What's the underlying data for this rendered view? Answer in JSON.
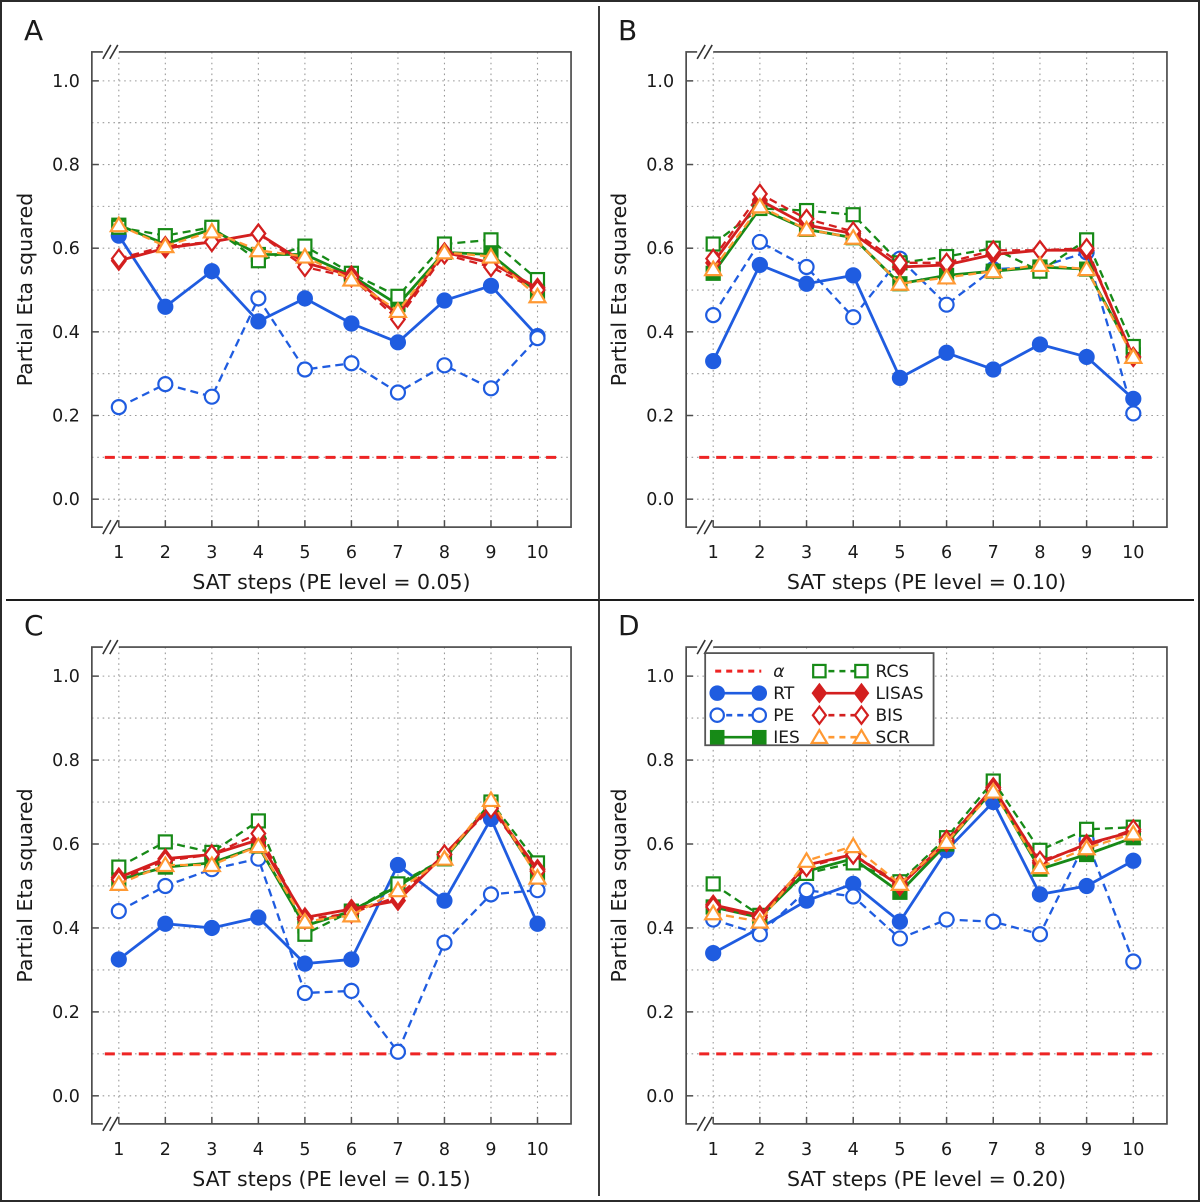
{
  "figure": {
    "background": "#ffffff",
    "outer_border_color": "#2b2b2b",
    "divider_color": "#3c3c3c",
    "axis_color": "#4d4d4d",
    "grid_color": "#9a9a9a",
    "text_color": "#1a1a1a",
    "axis_breaks": true
  },
  "series_defs": [
    {
      "key": "alpha",
      "label": "α",
      "type": "hline",
      "color": "#ee2424",
      "dash": "10 7",
      "width": 3,
      "marker": "none",
      "filled": false
    },
    {
      "key": "RT",
      "label": "RT",
      "type": "line",
      "color": "#1f5ce0",
      "dash": null,
      "width": 2.8,
      "marker": "circle",
      "filled": true
    },
    {
      "key": "PE",
      "label": "PE",
      "type": "line",
      "color": "#1f5ce0",
      "dash": "8 5",
      "width": 2.3,
      "marker": "circle",
      "filled": false
    },
    {
      "key": "IES",
      "label": "IES",
      "type": "line",
      "color": "#178a17",
      "dash": null,
      "width": 2.8,
      "marker": "square",
      "filled": true
    },
    {
      "key": "RCS",
      "label": "RCS",
      "type": "line",
      "color": "#178a17",
      "dash": "8 5",
      "width": 2.3,
      "marker": "square",
      "filled": false
    },
    {
      "key": "LISAS",
      "label": "LISAS",
      "type": "line",
      "color": "#d31f1f",
      "dash": null,
      "width": 2.8,
      "marker": "diamond",
      "filled": true
    },
    {
      "key": "BIS",
      "label": "BIS",
      "type": "line",
      "color": "#d31f1f",
      "dash": "8 5",
      "width": 2.3,
      "marker": "diamond",
      "filled": false
    },
    {
      "key": "SCR",
      "label": "SCR",
      "type": "line",
      "color": "#ff9933",
      "dash": "8 5",
      "width": 2.3,
      "marker": "triangle",
      "filled": false
    }
  ],
  "legend": {
    "col1": [
      "alpha",
      "RT",
      "PE",
      "IES"
    ],
    "col2": [
      "RCS",
      "LISAS",
      "BIS",
      "SCR"
    ],
    "border_color": "#555555",
    "background": "#ffffff"
  },
  "chart_data": [
    {
      "type": "line",
      "panel_label": "A",
      "xlabel": "SAT steps (PE level = 0.05)",
      "ylabel": "Partial Eta squared",
      "x": [
        1,
        2,
        3,
        4,
        5,
        6,
        7,
        8,
        9,
        10
      ],
      "yticks": [
        0.0,
        0.2,
        0.4,
        0.6,
        0.8,
        1.0
      ],
      "ytick_labels": [
        "0.0",
        "0.2",
        "0.4",
        "0.6",
        "0.8",
        "1.0"
      ],
      "ylim": [
        -0.07,
        1.07
      ],
      "grid": "dotted",
      "alpha": 0.1,
      "show_legend": false,
      "series": {
        "RT": [
          0.63,
          0.46,
          0.545,
          0.425,
          0.48,
          0.42,
          0.375,
          0.475,
          0.51,
          0.39
        ],
        "PE": [
          0.22,
          0.275,
          0.245,
          0.48,
          0.31,
          0.325,
          0.255,
          0.32,
          0.265,
          0.385
        ],
        "IES": [
          0.655,
          0.61,
          0.645,
          0.585,
          0.585,
          0.535,
          0.465,
          0.59,
          0.585,
          0.495
        ],
        "RCS": [
          0.65,
          0.63,
          0.65,
          0.57,
          0.605,
          0.54,
          0.485,
          0.61,
          0.62,
          0.525
        ],
        "LISAS": [
          0.57,
          0.6,
          0.615,
          0.635,
          0.565,
          0.535,
          0.44,
          0.59,
          0.565,
          0.505
        ],
        "BIS": [
          0.575,
          0.605,
          0.615,
          0.635,
          0.555,
          0.53,
          0.43,
          0.585,
          0.555,
          0.5
        ],
        "SCR": [
          0.655,
          0.605,
          0.64,
          0.595,
          0.58,
          0.525,
          0.45,
          0.59,
          0.58,
          0.485
        ]
      }
    },
    {
      "type": "line",
      "panel_label": "B",
      "xlabel": "SAT steps (PE level = 0.10)",
      "ylabel": "Partial Eta squared",
      "x": [
        1,
        2,
        3,
        4,
        5,
        6,
        7,
        8,
        9,
        10
      ],
      "yticks": [
        0.0,
        0.2,
        0.4,
        0.6,
        0.8,
        1.0
      ],
      "ytick_labels": [
        "0.0",
        "0.2",
        "0.4",
        "0.6",
        "0.8",
        "1.0"
      ],
      "ylim": [
        -0.07,
        1.07
      ],
      "grid": "dotted",
      "alpha": 0.1,
      "show_legend": false,
      "series": {
        "RT": [
          0.33,
          0.56,
          0.515,
          0.535,
          0.29,
          0.35,
          0.31,
          0.37,
          0.34,
          0.24
        ],
        "PE": [
          0.44,
          0.615,
          0.555,
          0.435,
          0.575,
          0.465,
          0.55,
          0.555,
          0.59,
          0.205
        ],
        "IES": [
          0.54,
          0.695,
          0.645,
          0.625,
          0.515,
          0.535,
          0.545,
          0.555,
          0.55,
          0.345
        ],
        "RCS": [
          0.61,
          0.695,
          0.69,
          0.68,
          0.565,
          0.58,
          0.6,
          0.545,
          0.62,
          0.365
        ],
        "LISAS": [
          0.565,
          0.715,
          0.655,
          0.635,
          0.555,
          0.56,
          0.585,
          0.595,
          0.595,
          0.34
        ],
        "BIS": [
          0.575,
          0.73,
          0.67,
          0.64,
          0.565,
          0.565,
          0.595,
          0.595,
          0.6,
          0.34
        ],
        "SCR": [
          0.55,
          0.7,
          0.645,
          0.625,
          0.515,
          0.53,
          0.545,
          0.56,
          0.55,
          0.34
        ]
      }
    },
    {
      "type": "line",
      "panel_label": "C",
      "xlabel": "SAT steps (PE level = 0.15)",
      "ylabel": "Partial Eta squared",
      "x": [
        1,
        2,
        3,
        4,
        5,
        6,
        7,
        8,
        9,
        10
      ],
      "yticks": [
        0.0,
        0.2,
        0.4,
        0.6,
        0.8,
        1.0
      ],
      "ytick_labels": [
        "0.0",
        "0.2",
        "0.4",
        "0.6",
        "0.8",
        "1.0"
      ],
      "ylim": [
        -0.07,
        1.07
      ],
      "grid": "dotted",
      "alpha": 0.1,
      "show_legend": false,
      "series": {
        "RT": [
          0.325,
          0.41,
          0.4,
          0.425,
          0.315,
          0.325,
          0.55,
          0.465,
          0.66,
          0.41
        ],
        "PE": [
          0.44,
          0.5,
          0.54,
          0.565,
          0.245,
          0.25,
          0.105,
          0.365,
          0.48,
          0.49
        ],
        "IES": [
          0.515,
          0.545,
          0.555,
          0.595,
          0.405,
          0.44,
          0.5,
          0.565,
          0.695,
          0.525
        ],
        "RCS": [
          0.545,
          0.605,
          0.58,
          0.655,
          0.385,
          0.44,
          0.505,
          0.565,
          0.7,
          0.555
        ],
        "LISAS": [
          0.52,
          0.565,
          0.575,
          0.61,
          0.425,
          0.445,
          0.465,
          0.575,
          0.69,
          0.54
        ],
        "BIS": [
          0.515,
          0.56,
          0.575,
          0.625,
          0.42,
          0.435,
          0.475,
          0.575,
          0.685,
          0.535
        ],
        "SCR": [
          0.505,
          0.55,
          0.55,
          0.595,
          0.415,
          0.43,
          0.49,
          0.565,
          0.705,
          0.52
        ]
      }
    },
    {
      "type": "line",
      "panel_label": "D",
      "xlabel": "SAT steps (PE level = 0.20)",
      "ylabel": "Partial Eta squared",
      "x": [
        1,
        2,
        3,
        4,
        5,
        6,
        7,
        8,
        9,
        10
      ],
      "yticks": [
        0.0,
        0.2,
        0.4,
        0.6,
        0.8,
        1.0
      ],
      "ytick_labels": [
        "0.0",
        "0.2",
        "0.4",
        "0.6",
        "0.8",
        "1.0"
      ],
      "ylim": [
        -0.07,
        1.07
      ],
      "grid": "dotted",
      "alpha": 0.1,
      "show_legend": true,
      "series": {
        "RT": [
          0.34,
          0.4,
          0.465,
          0.505,
          0.415,
          0.585,
          0.7,
          0.48,
          0.5,
          0.56
        ],
        "PE": [
          0.42,
          0.385,
          0.49,
          0.475,
          0.375,
          0.42,
          0.415,
          0.385,
          0.61,
          0.32
        ],
        "IES": [
          0.45,
          0.425,
          0.535,
          0.565,
          0.485,
          0.6,
          0.73,
          0.54,
          0.575,
          0.615
        ],
        "RCS": [
          0.505,
          0.43,
          0.53,
          0.555,
          0.51,
          0.615,
          0.75,
          0.585,
          0.635,
          0.64
        ],
        "LISAS": [
          0.455,
          0.43,
          0.55,
          0.575,
          0.5,
          0.605,
          0.735,
          0.555,
          0.6,
          0.63
        ],
        "BIS": [
          0.45,
          0.425,
          0.545,
          0.575,
          0.505,
          0.61,
          0.73,
          0.56,
          0.595,
          0.635
        ],
        "SCR": [
          0.435,
          0.415,
          0.56,
          0.595,
          0.505,
          0.605,
          0.725,
          0.545,
          0.59,
          0.625
        ]
      }
    }
  ]
}
